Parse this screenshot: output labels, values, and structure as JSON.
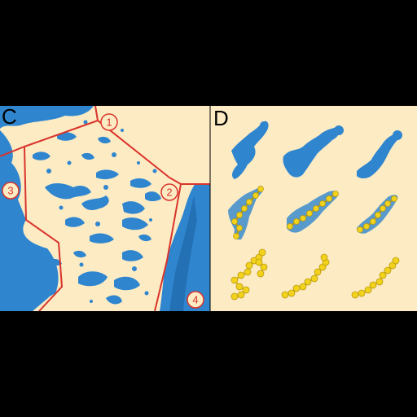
{
  "panels": [
    {
      "label": "C"
    },
    {
      "label": "D"
    }
  ],
  "regions": [
    {
      "number": "1"
    },
    {
      "number": "2"
    },
    {
      "number": "3"
    },
    {
      "number": "4"
    }
  ],
  "colors": {
    "background": "#fdebc4",
    "density": "#2f86cf",
    "density_dark": "#1c5f9e",
    "boundary": "#d9342b",
    "model": "#f2d21b",
    "model_dark": "#b89a10",
    "frame": "#000000"
  }
}
